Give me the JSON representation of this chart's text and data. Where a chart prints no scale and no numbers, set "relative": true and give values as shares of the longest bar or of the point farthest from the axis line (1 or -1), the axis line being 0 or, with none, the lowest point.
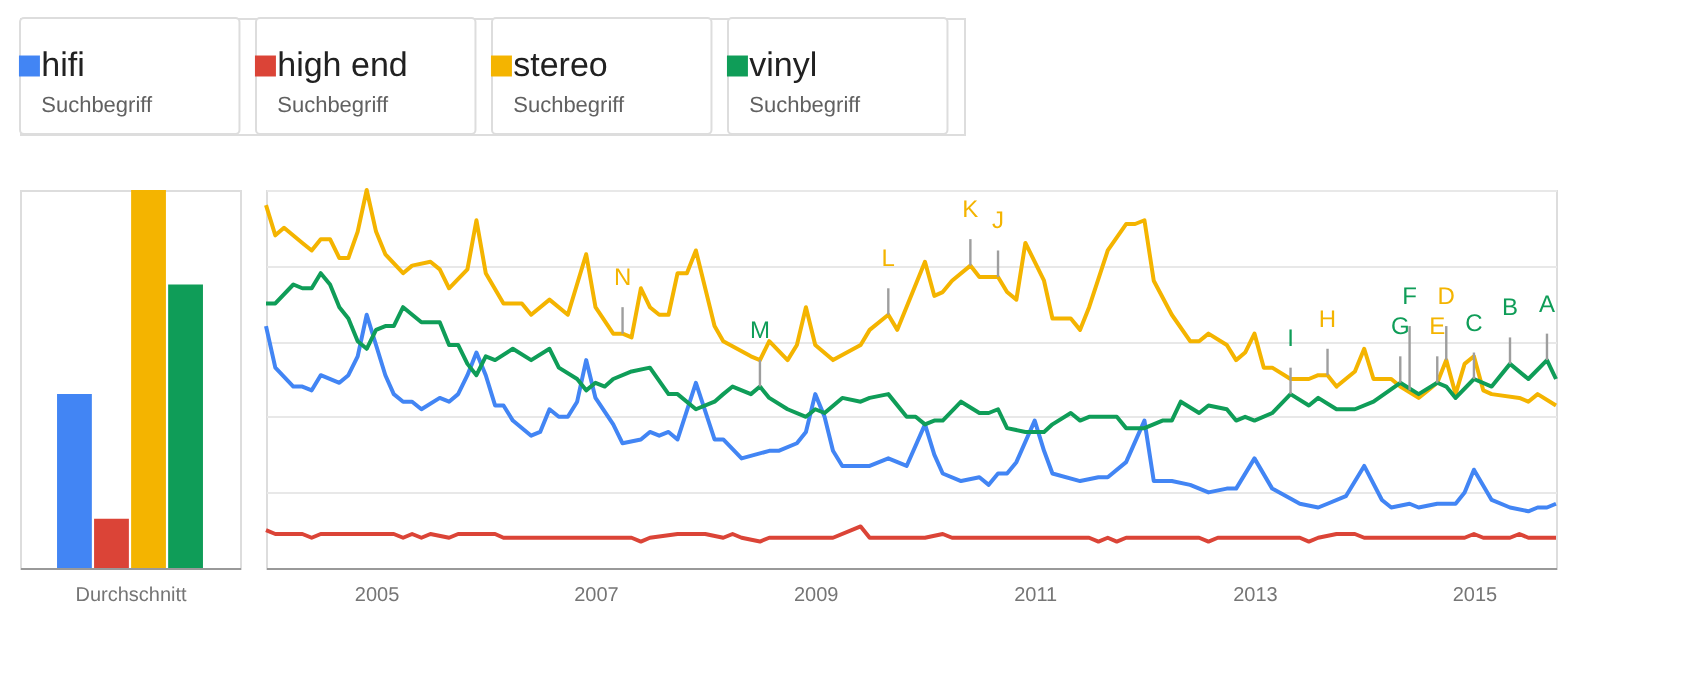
{
  "chart_data": [
    {
      "type": "bar",
      "relative": true,
      "categories": [
        null,
        null,
        null,
        null
      ],
      "values": [
        0.46,
        0.13,
        1.0,
        0.75
      ],
      "colors": [
        "#4285f4",
        "#db4437",
        "#f4b400",
        "#0f9d58"
      ],
      "xlabel": "Durchschnitt"
    },
    {
      "type": "line",
      "relative": true,
      "legend": "top",
      "legend_title": "Suchbegriff",
      "grid": "y",
      "line_style": "solid",
      "xlim": [
        "2004-01",
        "2015-10"
      ],
      "xticks": [
        "2005",
        "2007",
        "2009",
        "2011",
        "2013",
        "2015"
      ],
      "series": [
        {
          "name": "hifi",
          "color": "#4285f4",
          "x": [
            "2004-01",
            "2004-02",
            "2004-04",
            "2004-05",
            "2004-06",
            "2004-07",
            "2004-09",
            "2004-10",
            "2004-11",
            "2004-12",
            "2005-01",
            "2005-02",
            "2005-03",
            "2005-04",
            "2005-05",
            "2005-06",
            "2005-08",
            "2005-09",
            "2005-10",
            "2005-11",
            "2005-12",
            "2006-01",
            "2006-02",
            "2006-03",
            "2006-04",
            "2006-06",
            "2006-07",
            "2006-08",
            "2006-09",
            "2006-10",
            "2006-11",
            "2006-12",
            "2007-01",
            "2007-03",
            "2007-04",
            "2007-06",
            "2007-07",
            "2007-08",
            "2007-09",
            "2007-10",
            "2007-12",
            "2008-02",
            "2008-03",
            "2008-05",
            "2008-08",
            "2008-09",
            "2008-11",
            "2008-12",
            "2009-01",
            "2009-02",
            "2009-03",
            "2009-04",
            "2009-07",
            "2009-09",
            "2009-11",
            "2010-01",
            "2010-02",
            "2010-03",
            "2010-05",
            "2010-07",
            "2010-08",
            "2010-09",
            "2010-10",
            "2010-11",
            "2011-01",
            "2011-02",
            "2011-03",
            "2011-06",
            "2011-08",
            "2011-09",
            "2011-11",
            "2012-01",
            "2012-02",
            "2012-04",
            "2012-06",
            "2012-08",
            "2012-10",
            "2012-11",
            "2013-01",
            "2013-03",
            "2013-06",
            "2013-08",
            "2013-09",
            "2013-11",
            "2014-01",
            "2014-03",
            "2014-04",
            "2014-06",
            "2014-07",
            "2014-09",
            "2014-11",
            "2014-12",
            "2015-01",
            "2015-03",
            "2015-05",
            "2015-07",
            "2015-08",
            "2015-09",
            "2015-10"
          ],
          "values": [
            0.64,
            0.53,
            0.48,
            0.48,
            0.47,
            0.51,
            0.49,
            0.51,
            0.56,
            0.67,
            0.59,
            0.51,
            0.46,
            0.44,
            0.44,
            0.42,
            0.45,
            0.44,
            0.46,
            0.51,
            0.57,
            0.51,
            0.43,
            0.43,
            0.39,
            0.35,
            0.36,
            0.42,
            0.4,
            0.4,
            0.44,
            0.55,
            0.45,
            0.38,
            0.33,
            0.34,
            0.36,
            0.35,
            0.36,
            0.34,
            0.49,
            0.34,
            0.34,
            0.29,
            0.31,
            0.31,
            0.33,
            0.36,
            0.46,
            0.4,
            0.31,
            0.27,
            0.27,
            0.29,
            0.27,
            0.38,
            0.3,
            0.25,
            0.23,
            0.24,
            0.22,
            0.25,
            0.25,
            0.28,
            0.39,
            0.31,
            0.25,
            0.23,
            0.24,
            0.24,
            0.28,
            0.39,
            0.23,
            0.23,
            0.22,
            0.2,
            0.21,
            0.21,
            0.29,
            0.21,
            0.17,
            0.16,
            0.17,
            0.19,
            0.27,
            0.18,
            0.16,
            0.17,
            0.16,
            0.17,
            0.17,
            0.2,
            0.26,
            0.18,
            0.16,
            0.15,
            0.16,
            0.16,
            0.17
          ]
        },
        {
          "name": "high end",
          "color": "#db4437",
          "x": [
            "2004-01",
            "2004-02",
            "2004-05",
            "2004-06",
            "2004-07",
            "2005-03",
            "2005-04",
            "2005-05",
            "2005-06",
            "2005-07",
            "2005-09",
            "2005-10",
            "2006-02",
            "2006-03",
            "2007-05",
            "2007-06",
            "2007-07",
            "2007-10",
            "2008-01",
            "2008-03",
            "2008-04",
            "2008-05",
            "2008-07",
            "2008-08",
            "2009-03",
            "2009-06",
            "2009-07",
            "2010-01",
            "2010-03",
            "2010-04",
            "2011-07",
            "2011-08",
            "2011-09",
            "2011-10",
            "2011-11",
            "2012-07",
            "2012-08",
            "2012-09",
            "2013-06",
            "2013-07",
            "2013-08",
            "2013-10",
            "2013-12",
            "2014-01",
            "2014-12",
            "2015-01",
            "2015-02",
            "2015-05",
            "2015-06",
            "2015-07",
            "2015-10"
          ],
          "values": [
            0.1,
            0.09,
            0.09,
            0.08,
            0.09,
            0.09,
            0.08,
            0.09,
            0.08,
            0.09,
            0.08,
            0.09,
            0.09,
            0.08,
            0.08,
            0.07,
            0.08,
            0.09,
            0.09,
            0.08,
            0.09,
            0.08,
            0.07,
            0.08,
            0.08,
            0.11,
            0.08,
            0.08,
            0.09,
            0.08,
            0.08,
            0.07,
            0.08,
            0.07,
            0.08,
            0.08,
            0.07,
            0.08,
            0.08,
            0.07,
            0.08,
            0.09,
            0.09,
            0.08,
            0.08,
            0.09,
            0.08,
            0.08,
            0.09,
            0.08,
            0.08
          ]
        },
        {
          "name": "stereo",
          "color": "#f4b400",
          "x": [
            "2004-01",
            "2004-02",
            "2004-03",
            "2004-05",
            "2004-06",
            "2004-07",
            "2004-08",
            "2004-09",
            "2004-10",
            "2004-11",
            "2004-12",
            "2005-01",
            "2005-02",
            "2005-04",
            "2005-05",
            "2005-07",
            "2005-08",
            "2005-09",
            "2005-11",
            "2005-12",
            "2006-01",
            "2006-03",
            "2006-05",
            "2006-06",
            "2006-08",
            "2006-10",
            "2006-12",
            "2007-01",
            "2007-03",
            "2007-04",
            "2007-05",
            "2007-06",
            "2007-07",
            "2007-08",
            "2007-09",
            "2007-10",
            "2007-11",
            "2007-12",
            "2008-02",
            "2008-03",
            "2008-06",
            "2008-07",
            "2008-08",
            "2008-10",
            "2008-11",
            "2008-12",
            "2009-01",
            "2009-03",
            "2009-06",
            "2009-07",
            "2009-09",
            "2009-10",
            "2010-01",
            "2010-02",
            "2010-03",
            "2010-04",
            "2010-06",
            "2010-07",
            "2010-09",
            "2010-10",
            "2010-11",
            "2010-12",
            "2011-02",
            "2011-03",
            "2011-05",
            "2011-06",
            "2011-07",
            "2011-09",
            "2011-11",
            "2011-12",
            "2012-01",
            "2012-02",
            "2012-04",
            "2012-06",
            "2012-07",
            "2012-08",
            "2012-10",
            "2012-11",
            "2012-12",
            "2013-01",
            "2013-02",
            "2013-03",
            "2013-05",
            "2013-07",
            "2013-08",
            "2013-09",
            "2013-10",
            "2013-12",
            "2014-01",
            "2014-02",
            "2014-04",
            "2014-05",
            "2014-07",
            "2014-08",
            "2014-09",
            "2014-10",
            "2014-11",
            "2014-12",
            "2015-01",
            "2015-02",
            "2015-03",
            "2015-06",
            "2015-07",
            "2015-08",
            "2015-10"
          ],
          "values": [
            0.96,
            0.88,
            0.9,
            0.86,
            0.84,
            0.87,
            0.87,
            0.82,
            0.82,
            0.89,
            1.0,
            0.89,
            0.83,
            0.78,
            0.8,
            0.81,
            0.79,
            0.74,
            0.79,
            0.92,
            0.78,
            0.7,
            0.7,
            0.67,
            0.71,
            0.67,
            0.83,
            0.69,
            0.62,
            0.62,
            0.61,
            0.74,
            0.69,
            0.67,
            0.67,
            0.78,
            0.78,
            0.84,
            0.64,
            0.6,
            0.56,
            0.55,
            0.6,
            0.55,
            0.59,
            0.69,
            0.59,
            0.55,
            0.59,
            0.63,
            0.67,
            0.63,
            0.81,
            0.72,
            0.73,
            0.76,
            0.8,
            0.77,
            0.77,
            0.73,
            0.71,
            0.86,
            0.76,
            0.66,
            0.66,
            0.63,
            0.69,
            0.84,
            0.91,
            0.91,
            0.92,
            0.76,
            0.67,
            0.6,
            0.6,
            0.62,
            0.59,
            0.55,
            0.57,
            0.62,
            0.53,
            0.53,
            0.5,
            0.5,
            0.51,
            0.51,
            0.48,
            0.52,
            0.58,
            0.5,
            0.5,
            0.48,
            0.45,
            0.47,
            0.49,
            0.55,
            0.46,
            0.54,
            0.56,
            0.47,
            0.46,
            0.45,
            0.44,
            0.46,
            0.43
          ]
        },
        {
          "name": "vinyl",
          "color": "#0f9d58",
          "x": [
            "2004-01",
            "2004-02",
            "2004-04",
            "2004-05",
            "2004-06",
            "2004-07",
            "2004-08",
            "2004-09",
            "2004-10",
            "2004-11",
            "2004-12",
            "2005-01",
            "2005-02",
            "2005-03",
            "2005-04",
            "2005-06",
            "2005-08",
            "2005-09",
            "2005-10",
            "2005-11",
            "2005-12",
            "2006-01",
            "2006-02",
            "2006-04",
            "2006-06",
            "2006-08",
            "2006-09",
            "2006-11",
            "2006-12",
            "2007-01",
            "2007-02",
            "2007-03",
            "2007-05",
            "2007-07",
            "2007-09",
            "2007-10",
            "2007-12",
            "2008-02",
            "2008-03",
            "2008-04",
            "2008-06",
            "2008-07",
            "2008-08",
            "2008-10",
            "2008-12",
            "2009-01",
            "2009-02",
            "2009-04",
            "2009-06",
            "2009-07",
            "2009-09",
            "2009-11",
            "2009-12",
            "2010-01",
            "2010-02",
            "2010-03",
            "2010-05",
            "2010-07",
            "2010-08",
            "2010-09",
            "2010-10",
            "2010-12",
            "2011-02",
            "2011-03",
            "2011-05",
            "2011-06",
            "2011-07",
            "2011-10",
            "2011-11",
            "2012-01",
            "2012-03",
            "2012-04",
            "2012-05",
            "2012-07",
            "2012-08",
            "2012-10",
            "2012-11",
            "2012-12",
            "2013-01",
            "2013-03",
            "2013-05",
            "2013-07",
            "2013-08",
            "2013-10",
            "2013-12",
            "2014-02",
            "2014-05",
            "2014-07",
            "2014-09",
            "2014-10",
            "2014-11",
            "2015-01",
            "2015-03",
            "2015-05",
            "2015-07",
            "2015-09",
            "2015-10"
          ],
          "values": [
            0.7,
            0.7,
            0.75,
            0.74,
            0.74,
            0.78,
            0.75,
            0.69,
            0.66,
            0.6,
            0.58,
            0.63,
            0.64,
            0.64,
            0.69,
            0.65,
            0.65,
            0.59,
            0.59,
            0.54,
            0.51,
            0.56,
            0.55,
            0.58,
            0.55,
            0.58,
            0.53,
            0.5,
            0.47,
            0.49,
            0.48,
            0.5,
            0.52,
            0.53,
            0.46,
            0.46,
            0.42,
            0.44,
            0.46,
            0.48,
            0.46,
            0.48,
            0.45,
            0.42,
            0.4,
            0.42,
            0.41,
            0.45,
            0.44,
            0.45,
            0.46,
            0.4,
            0.4,
            0.38,
            0.39,
            0.39,
            0.44,
            0.41,
            0.41,
            0.42,
            0.37,
            0.36,
            0.36,
            0.38,
            0.41,
            0.39,
            0.4,
            0.4,
            0.37,
            0.37,
            0.39,
            0.39,
            0.44,
            0.41,
            0.43,
            0.42,
            0.39,
            0.4,
            0.39,
            0.41,
            0.46,
            0.43,
            0.45,
            0.42,
            0.42,
            0.44,
            0.49,
            0.46,
            0.49,
            0.48,
            0.45,
            0.5,
            0.48,
            0.54,
            0.5,
            0.55,
            0.5
          ]
        }
      ],
      "annotations": [
        {
          "text": "N",
          "x": "2007-04",
          "y": 0.62
        },
        {
          "text": "M",
          "x": "2008-07",
          "y": 0.48
        },
        {
          "text": "L",
          "x": "2009-09",
          "y": 0.67
        },
        {
          "text": "K",
          "x": "2010-06",
          "y": 0.8
        },
        {
          "text": "J",
          "x": "2010-09",
          "y": 0.77
        },
        {
          "text": "I",
          "x": "2013-05",
          "y": 0.46
        },
        {
          "text": "H",
          "x": "2013-09",
          "y": 0.51
        },
        {
          "text": "G",
          "x": "2014-05",
          "y": 0.49
        },
        {
          "text": "F",
          "x": "2014-06",
          "y": 0.47
        },
        {
          "text": "E",
          "x": "2014-09",
          "y": 0.49
        },
        {
          "text": "D",
          "x": "2014-10",
          "y": 0.55
        },
        {
          "text": "C",
          "x": "2015-01",
          "y": 0.5
        },
        {
          "text": "B",
          "x": "2015-05",
          "y": 0.54
        },
        {
          "text": "A",
          "x": "2015-09",
          "y": 0.55
        }
      ]
    }
  ]
}
